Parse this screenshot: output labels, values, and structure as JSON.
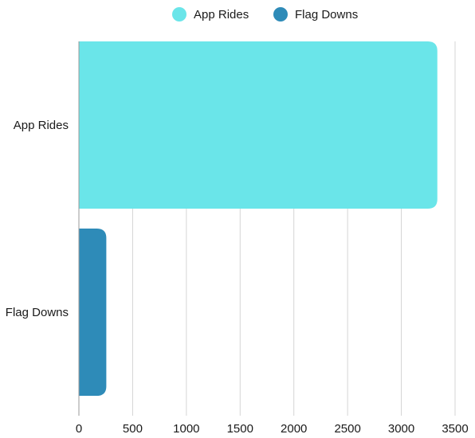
{
  "chart_data": {
    "type": "bar",
    "orientation": "horizontal",
    "categories": [
      "App Rides",
      "Flag Downs"
    ],
    "values": [
      3335,
      255
    ],
    "colors": [
      "#6ae5e9",
      "#2e8bb8"
    ],
    "legend": {
      "position": "top-center",
      "entries": [
        {
          "label": "App Rides",
          "color": "#6ae5e9"
        },
        {
          "label": "Flag Downs",
          "color": "#2e8bb8"
        }
      ]
    },
    "xlim": [
      0,
      3500
    ],
    "x_ticks": [
      0,
      500,
      1000,
      1500,
      2000,
      2500,
      3000,
      3500
    ],
    "x_tick_labels": [
      "0",
      "500",
      "1000",
      "1500",
      "2000",
      "2500",
      "3000",
      "3500"
    ],
    "grid": "vertical",
    "title": "",
    "xlabel": "",
    "ylabel": ""
  }
}
